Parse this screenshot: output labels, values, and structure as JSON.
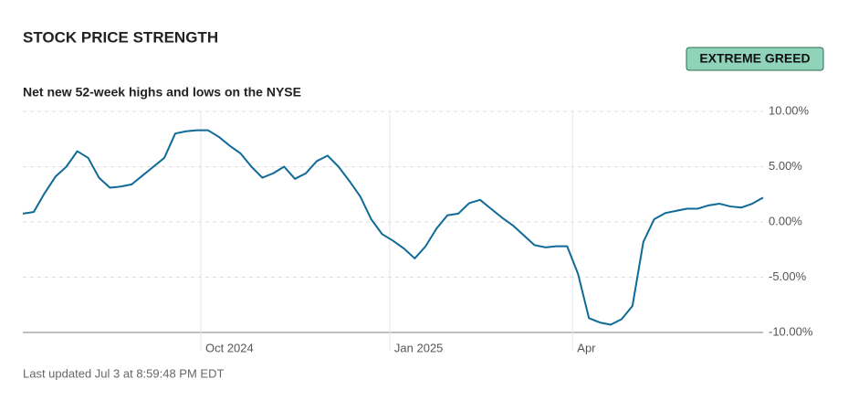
{
  "header": {
    "title": "STOCK PRICE STRENGTH",
    "badge": "EXTREME GREED"
  },
  "chart_data": {
    "type": "line",
    "subtitle": "Net new 52-week highs and lows on the NYSE",
    "series": [
      {
        "color": "#0f6a96",
        "values": [
          0.75,
          0.9,
          2.6,
          4.1,
          5.0,
          6.4,
          5.8,
          4.0,
          3.1,
          3.2,
          3.4,
          4.2,
          5.0,
          5.8,
          8.0,
          8.2,
          8.3,
          8.3,
          7.7,
          6.9,
          6.2,
          5.0,
          4.0,
          4.4,
          5.0,
          3.9,
          4.4,
          5.5,
          6.0,
          5.0,
          3.7,
          2.3,
          0.25,
          -1.1,
          -1.7,
          -2.4,
          -3.3,
          -2.2,
          -0.6,
          0.6,
          0.75,
          1.7,
          2.0,
          1.2,
          0.4,
          -0.3,
          -1.2,
          -2.1,
          -2.3,
          -2.2,
          -2.2,
          -4.7,
          -8.7,
          -9.1,
          -9.3,
          -8.8,
          -7.6,
          -1.8,
          0.25,
          0.8,
          1.0,
          1.2,
          1.2,
          1.5,
          1.65,
          1.4,
          1.3,
          1.65,
          2.2
        ]
      }
    ],
    "ylim": [
      -10,
      10
    ],
    "yticks": [
      {
        "value": -10,
        "label": "-10.00%"
      },
      {
        "value": -5,
        "label": "-5.00%"
      },
      {
        "value": 0,
        "label": "0.00%"
      },
      {
        "value": 5,
        "label": "5.00%"
      },
      {
        "value": 10,
        "label": "10.00%"
      }
    ],
    "xticks": [
      {
        "value": 16.35,
        "label": "Oct 2024"
      },
      {
        "value": 33.7,
        "label": "Jan 2025"
      },
      {
        "value": 50.5,
        "label": "Apr"
      }
    ],
    "grid": true
  },
  "footer": "Last updated Jul 3 at 8:59:48 PM EDT"
}
